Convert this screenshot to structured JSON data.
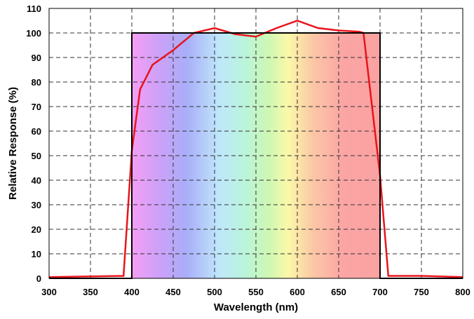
{
  "chart_data": {
    "type": "line",
    "title": "",
    "xlabel": "Wavelength (nm)",
    "ylabel": "Relative Response (%)",
    "xlim": [
      300,
      800
    ],
    "ylim": [
      0,
      110
    ],
    "xticks": [
      300,
      350,
      400,
      450,
      500,
      550,
      600,
      650,
      700,
      750,
      800
    ],
    "yticks": [
      0,
      10,
      20,
      30,
      40,
      50,
      60,
      70,
      80,
      90,
      100,
      110
    ],
    "grid": true,
    "legend": "none",
    "background_spectrum": {
      "from": 400,
      "to": 700
    },
    "series": [
      {
        "color": "#e8141b",
        "x": [
          300,
          350,
          390,
          400,
          410,
          425,
          450,
          475,
          500,
          525,
          550,
          575,
          600,
          625,
          650,
          675,
          680,
          700,
          710,
          750,
          800
        ],
        "y": [
          0.5,
          0.8,
          1,
          52,
          77,
          87,
          93,
          100,
          102,
          99.5,
          98.5,
          102,
          105,
          102,
          101,
          100.5,
          100,
          42,
          1,
          1,
          0.5
        ]
      },
      {
        "color": "#000000",
        "x": [
          300,
          400,
          400,
          700,
          700,
          800
        ],
        "y": [
          0,
          0,
          100,
          100,
          0,
          0
        ]
      }
    ]
  }
}
